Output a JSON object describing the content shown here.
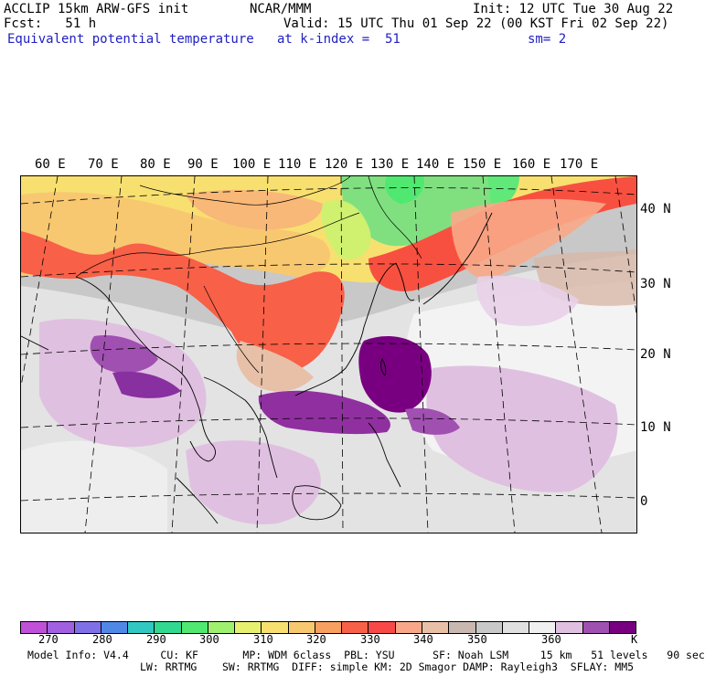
{
  "header": {
    "model": "ACCLIP 15km ARW-GFS init",
    "center": "NCAR/MMM",
    "init": "Init: 12 UTC Tue 30 Aug 22",
    "fcst": "Fcst:   51 h",
    "valid": "Valid: 15 UTC Thu 01 Sep 22 (00 KST Fri 02 Sep 22)",
    "field": "Equivalent potential temperature",
    "level": "at k-index =  51",
    "smooth": "sm= 2"
  },
  "map": {
    "lon_labels": [
      "60 E",
      "70 E",
      "80 E",
      "90 E",
      "100 E",
      "110 E",
      "120 E",
      "130 E",
      "140 E",
      "150 E",
      "160 E",
      "170 E"
    ],
    "lat_labels": [
      "40 N",
      "30 N",
      "20 N",
      "10 N",
      "0"
    ],
    "field_units": "K",
    "colors": {
      "ocean_base": "#c8c8c8",
      "land_outline": "#000000",
      "gridline": "#000000"
    }
  },
  "colorbar": {
    "colors": [
      "#c050d8",
      "#a060e0",
      "#8070e8",
      "#5088e8",
      "#30c8c0",
      "#30d890",
      "#50e870",
      "#a0f070",
      "#e8f070",
      "#f8e070",
      "#f8c870",
      "#f8a060",
      "#f86048",
      "#f84848",
      "#f8a888",
      "#e8c0a8",
      "#c8b8b0",
      "#c8c8c8",
      "#e0e0e0",
      "#f0f0f0",
      "#e0c0e0",
      "#a050b0",
      "#780080"
    ],
    "labels": [
      "270",
      "280",
      "290",
      "300",
      "310",
      "320",
      "330",
      "340",
      "350",
      "360"
    ],
    "units": "K"
  },
  "footer": {
    "line1": "Model Info: V4.4     CU: KF       MP: WDM 6class  PBL: YSU      SF: Noah LSM     15 km   51 levels   90 sec",
    "line2": "LW: RRTMG    SW: RRTMG  DIFF: simple KM: 2D Smagor DAMP: Rayleigh3  SFLAY: MM5"
  }
}
